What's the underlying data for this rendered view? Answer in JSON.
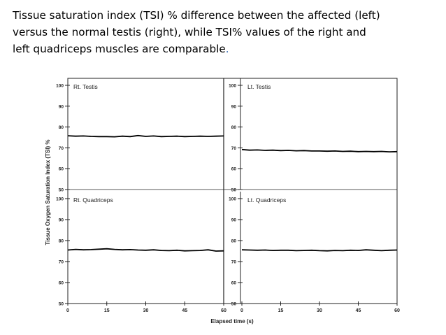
{
  "caption": {
    "line1": "Tissue saturation index (TSI) % difference between the affected (left)",
    "line2": "versus the normal testis (right), while TSI% values of the right and",
    "line3": "left quadriceps muscles are comparable",
    "line3_end": "."
  },
  "colors": {
    "line": "#000000",
    "frame": "#222222",
    "caption_period": "#3b6fb6"
  },
  "chart_data": {
    "type": "line",
    "ylabel": "Tissue Oxygen Saturation Index (TSI) %",
    "xlabel": "Elapsed time (s)",
    "xlim": [
      0,
      60
    ],
    "ylim": [
      50,
      100
    ],
    "yticks": [
      50,
      60,
      70,
      80,
      90,
      100
    ],
    "xticks": [
      0,
      15,
      30,
      45,
      60
    ],
    "panels": [
      {
        "title": "Rt. Testis",
        "position": "top-left",
        "series": {
          "x": [
            0,
            3,
            6,
            9,
            12,
            15,
            18,
            21,
            24,
            27,
            30,
            33,
            36,
            39,
            42,
            45,
            48,
            51,
            54,
            57,
            60
          ],
          "y": [
            75.8,
            75.6,
            75.7,
            75.5,
            75.4,
            75.4,
            75.3,
            75.6,
            75.4,
            75.9,
            75.5,
            75.7,
            75.4,
            75.5,
            75.6,
            75.4,
            75.5,
            75.6,
            75.5,
            75.6,
            75.7
          ]
        }
      },
      {
        "title": "Lt. Testis",
        "position": "top-right",
        "series": {
          "x": [
            0,
            3,
            6,
            9,
            12,
            15,
            18,
            21,
            24,
            27,
            30,
            33,
            36,
            39,
            42,
            45,
            48,
            51,
            54,
            57,
            60
          ],
          "y": [
            69.2,
            68.9,
            69.0,
            68.8,
            68.9,
            68.7,
            68.8,
            68.6,
            68.7,
            68.5,
            68.5,
            68.4,
            68.5,
            68.3,
            68.4,
            68.2,
            68.3,
            68.2,
            68.3,
            68.1,
            68.2
          ]
        }
      },
      {
        "title": "Rt. Quadriceps",
        "position": "bottom-left",
        "series": {
          "x": [
            0,
            3,
            6,
            9,
            12,
            15,
            18,
            21,
            24,
            27,
            30,
            33,
            36,
            39,
            42,
            45,
            48,
            51,
            54,
            57,
            60
          ],
          "y": [
            75.5,
            75.8,
            75.6,
            75.7,
            75.9,
            76.1,
            75.8,
            75.6,
            75.7,
            75.5,
            75.4,
            75.6,
            75.3,
            75.2,
            75.4,
            75.1,
            75.2,
            75.3,
            75.6,
            75.0,
            75.1
          ]
        }
      },
      {
        "title": "Lt. Quadriceps",
        "position": "bottom-right",
        "series": {
          "x": [
            0,
            3,
            6,
            9,
            12,
            15,
            18,
            21,
            24,
            27,
            30,
            33,
            36,
            39,
            42,
            45,
            48,
            51,
            54,
            57,
            60
          ],
          "y": [
            75.6,
            75.5,
            75.4,
            75.5,
            75.3,
            75.4,
            75.4,
            75.2,
            75.3,
            75.4,
            75.2,
            75.1,
            75.3,
            75.2,
            75.4,
            75.3,
            75.6,
            75.4,
            75.2,
            75.4,
            75.5
          ]
        }
      }
    ]
  }
}
